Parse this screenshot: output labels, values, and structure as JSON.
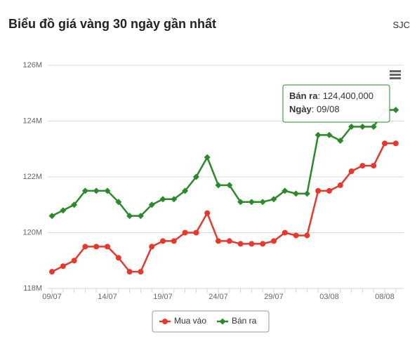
{
  "header": {
    "title": "Biểu đồ giá vàng 30 ngày gần nhất",
    "source": "SJC"
  },
  "chart_data": {
    "type": "line",
    "categories": [
      "09/07",
      null,
      null,
      null,
      null,
      "14/07",
      null,
      null,
      null,
      null,
      "19/07",
      null,
      null,
      null,
      null,
      "24/07",
      null,
      null,
      null,
      null,
      "29/07",
      null,
      null,
      null,
      null,
      "03/08",
      null,
      null,
      null,
      null,
      "08/08",
      null
    ],
    "series": [
      {
        "name": "Mua vào",
        "color": "#e8382c",
        "values": [
          118600000,
          118800000,
          119000000,
          119500000,
          119500000,
          119500000,
          119100000,
          118600000,
          118600000,
          119500000,
          119700000,
          119700000,
          120000000,
          120000000,
          120700000,
          119700000,
          119700000,
          119600000,
          119600000,
          119600000,
          119700000,
          120000000,
          119900000,
          119900000,
          121500000,
          121500000,
          121700000,
          122200000,
          122400000,
          122400000,
          123200000,
          123200000
        ]
      },
      {
        "name": "Bán ra",
        "color": "#2a8a2a",
        "values": [
          120600000,
          120800000,
          121000000,
          121500000,
          121500000,
          121500000,
          121100000,
          120600000,
          120600000,
          121000000,
          121200000,
          121200000,
          121500000,
          122000000,
          122700000,
          121700000,
          121700000,
          121100000,
          121100000,
          121100000,
          121200000,
          121500000,
          121400000,
          121400000,
          123500000,
          123500000,
          123300000,
          123800000,
          123800000,
          123800000,
          124400000,
          124400000
        ]
      }
    ],
    "ylim": [
      118000000,
      126000000
    ],
    "yticks": [
      {
        "value": 118000000,
        "label": "118M"
      },
      {
        "value": 120000000,
        "label": "120M"
      },
      {
        "value": 122000000,
        "label": "122M"
      },
      {
        "value": 124000000,
        "label": "124M"
      },
      {
        "value": 126000000,
        "label": "126M"
      }
    ],
    "grid": true,
    "legend": "bottom",
    "tooltip": {
      "value_label": "124,400,000",
      "date_label": "Ngày",
      "date": "09/08"
    }
  }
}
